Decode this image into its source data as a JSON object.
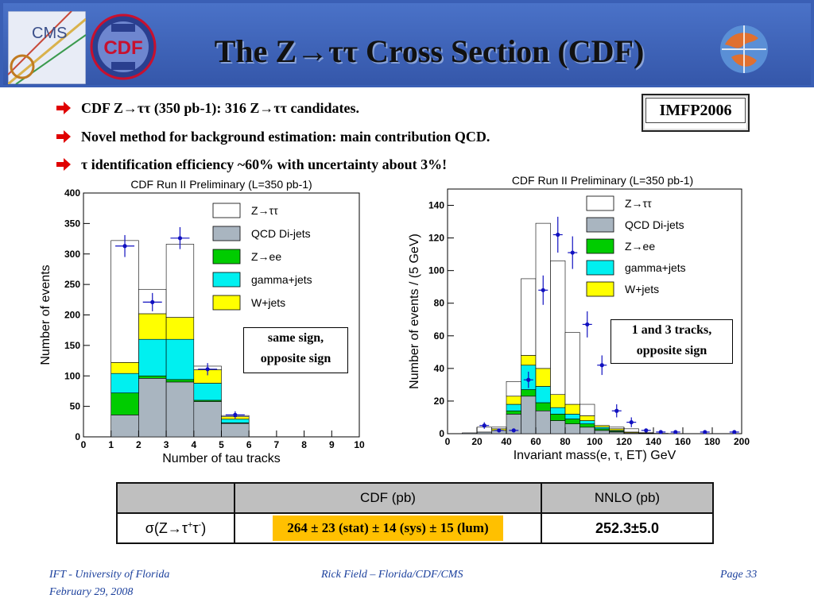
{
  "slide": {
    "title": "The Z→ττ Cross Section (CDF)",
    "badge": "IMFP2006",
    "bullets": [
      {
        "text": "CDF Z→ττ (350 pb-1): 316 Z→ττ candidates."
      },
      {
        "text": "Novel method for background estimation: main contribution QCD."
      },
      {
        "text": "τ identification efficiency ~60% with uncertainty about 3%!"
      }
    ],
    "logos": {
      "left_logo": "CMS",
      "cdf_logo": "CDF"
    },
    "bullet_color": "#e00000",
    "header_color": "#3a5fb5"
  },
  "annotations": {
    "left": [
      "same sign,",
      "opposite sign"
    ],
    "right": [
      "1 and 3 tracks,",
      "opposite sign"
    ]
  },
  "table": {
    "headers": [
      "",
      "CDF  (pb)",
      "NNLO (pb)"
    ],
    "row_label": "σ(Z→τ+τ-)",
    "cdf_value": "264 ± 23 (stat) ± 14 (sys) ± 15 (lum)",
    "nnlo_value": "252.3±5.0",
    "highlight_color": "#ffc000"
  },
  "footer": {
    "left_line1": "IFT - University of Florida",
    "left_line2": "February 29, 2008",
    "center": "Rick Field – Florida/CDF/CMS",
    "right": "Page 33"
  },
  "chart_data": [
    {
      "type": "bar",
      "title": "CDF Run II Preliminary   (L=350 pb-1)",
      "xlabel": "Number of tau tracks",
      "ylabel": "Number of events",
      "xlim": [
        0,
        10
      ],
      "ylim": [
        0,
        400
      ],
      "xticks": [
        "0",
        "1",
        "2",
        "3",
        "4",
        "5",
        "6",
        "7",
        "8",
        "9",
        "10"
      ],
      "yticks": [
        "0",
        "50",
        "100",
        "150",
        "200",
        "250",
        "300",
        "350",
        "400"
      ],
      "bin_edges": [
        1,
        2,
        3,
        4,
        5,
        6
      ],
      "legend": [
        "Z→ττ",
        "QCD Di-jets",
        "Z→ee",
        "gamma+jets",
        "W+jets"
      ],
      "legend_position": "top-right",
      "colors": {
        "Z→ττ": "#ffffff",
        "QCD Di-jets": "#a9b5c0",
        "Z→ee": "#00cc00",
        "gamma+jets": "#00f0f0",
        "W+jets": "#ffff00"
      },
      "series": [
        {
          "name": "QCD Di-jets",
          "values": [
            36,
            96,
            90,
            58,
            22
          ]
        },
        {
          "name": "Z→ee",
          "values": [
            36,
            4,
            4,
            2,
            1
          ]
        },
        {
          "name": "gamma+jets",
          "values": [
            32,
            60,
            66,
            28,
            6
          ]
        },
        {
          "name": "W+jets",
          "values": [
            18,
            42,
            36,
            22,
            4
          ]
        },
        {
          "name": "Z→ττ",
          "values": [
            200,
            40,
            120,
            6,
            2
          ]
        }
      ],
      "data": {
        "x": [
          1.5,
          2.5,
          3.5,
          4.5,
          5.5
        ],
        "y": [
          313,
          221,
          326,
          111,
          36
        ],
        "yerr": [
          18,
          15,
          18,
          10,
          6
        ]
      }
    },
    {
      "type": "bar",
      "title": "CDF Run II Preliminary   (L=350 pb-1)",
      "xlabel": "Invariant mass(e, τ, ET)  GeV",
      "ylabel": "Number of events / (5 GeV)",
      "xlim": [
        0,
        200
      ],
      "ylim": [
        0,
        150
      ],
      "xticks": [
        "0",
        "20",
        "40",
        "60",
        "80",
        "100",
        "120",
        "140",
        "160",
        "180",
        "200"
      ],
      "yticks": [
        "0",
        "20",
        "40",
        "60",
        "80",
        "100",
        "120",
        "140"
      ],
      "bin_edges": [
        10,
        20,
        30,
        40,
        50,
        60,
        70,
        80,
        90,
        100,
        110,
        120,
        130,
        140,
        150,
        160
      ],
      "legend": [
        "Z→ττ",
        "QCD Di-jets",
        "Z→ee",
        "gamma+jets",
        "W+jets"
      ],
      "legend_position": "top-right",
      "colors": {
        "Z→ττ": "#ffffff",
        "QCD Di-jets": "#a9b5c0",
        "Z→ee": "#00cc00",
        "gamma+jets": "#00f0f0",
        "W+jets": "#ffff00"
      },
      "series": [
        {
          "name": "QCD Di-jets",
          "values": [
            0.5,
            1,
            2,
            12,
            23,
            14,
            8,
            6,
            4,
            2,
            1,
            0.5,
            0.3,
            0,
            0
          ]
        },
        {
          "name": "Z→ee",
          "values": [
            0,
            0,
            0,
            2,
            4,
            5,
            4,
            3,
            2,
            1,
            0.5,
            0,
            0,
            0,
            0
          ]
        },
        {
          "name": "gamma+jets",
          "values": [
            0,
            0,
            0,
            4,
            15,
            10,
            4,
            3,
            2,
            1,
            0.5,
            0,
            0,
            0,
            0
          ]
        },
        {
          "name": "W+jets",
          "values": [
            0,
            0,
            1,
            5,
            6,
            11,
            8,
            6,
            3,
            1,
            1,
            0.5,
            0,
            0,
            0
          ]
        },
        {
          "name": "Z→ττ",
          "values": [
            0,
            3,
            1,
            9,
            47,
            89,
            82,
            44,
            7,
            0,
            1,
            2,
            0.3,
            0.2,
            0
          ]
        }
      ],
      "data": {
        "x": [
          25,
          35,
          45,
          55,
          65,
          75,
          85,
          95,
          105,
          115,
          125,
          135,
          145,
          155,
          175,
          195
        ],
        "y": [
          5,
          2,
          2,
          33,
          88,
          122,
          111,
          67,
          42,
          14,
          7,
          2,
          1,
          1,
          1,
          1
        ],
        "yerr": [
          2,
          1,
          1,
          5,
          9,
          11,
          10,
          8,
          6,
          4,
          3,
          1,
          1,
          1,
          1,
          1
        ]
      }
    }
  ]
}
